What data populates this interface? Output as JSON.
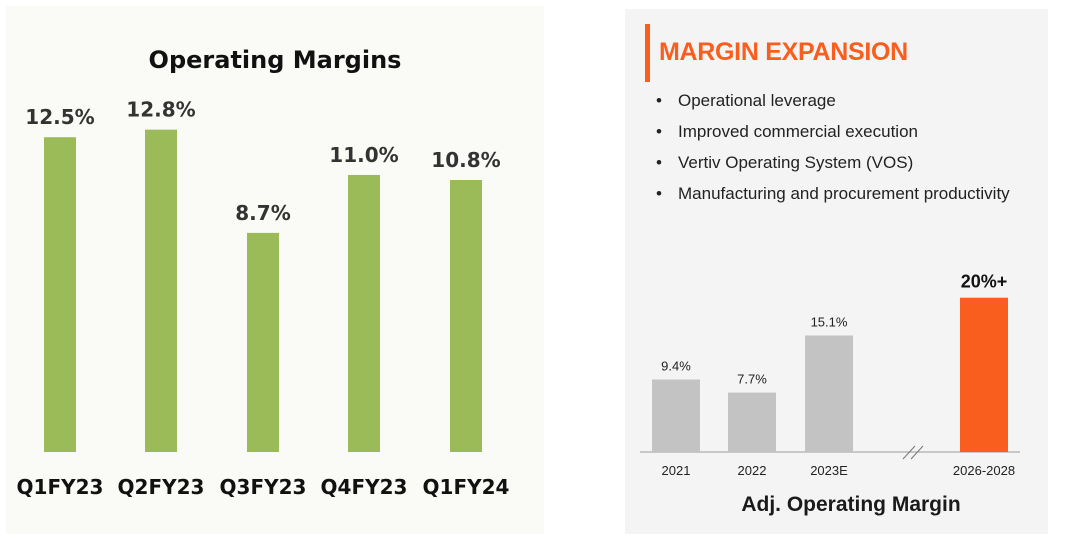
{
  "left_chart": {
    "chart_data": {
      "type": "bar",
      "title": "Operating Margins",
      "categories": [
        "Q1FY23",
        "Q2FY23",
        "Q3FY23",
        "Q4FY23",
        "Q1FY24"
      ],
      "values": [
        12.5,
        12.8,
        8.7,
        11.0,
        10.8
      ],
      "labels": [
        "12.5%",
        "12.8%",
        "8.7%",
        "11.0%",
        "10.8%"
      ],
      "unit": "%",
      "ylim": [
        0,
        13.5
      ],
      "grid": false,
      "bar_color": "#9bbb59"
    }
  },
  "right_panel": {
    "title": "MARGIN EXPANSION",
    "accent_color": "#fa5e1f",
    "bullets": [
      "Operational leverage",
      "Improved commercial execution",
      "Vertiv Operating System (VOS)",
      "Manufacturing and procurement productivity"
    ],
    "chart_data": {
      "type": "bar",
      "title": "Adj. Operating Margin",
      "categories": [
        "2021",
        "2022",
        "2023E",
        "2026-2028"
      ],
      "values": [
        9.4,
        7.7,
        15.1,
        20
      ],
      "labels": [
        "9.4%",
        "7.7%",
        "15.1%",
        "20%+"
      ],
      "unit": "%",
      "ylim": [
        0,
        21
      ],
      "axis_break": "//",
      "colors": [
        "#c3c3c3",
        "#c3c3c3",
        "#c3c3c3",
        "#fa5e1f"
      ]
    }
  }
}
